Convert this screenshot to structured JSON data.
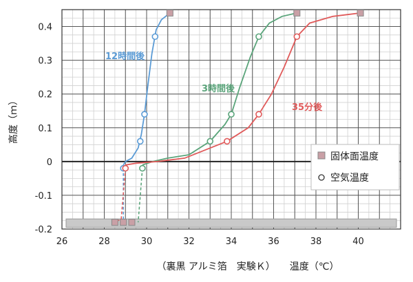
{
  "chart_data": {
    "type": "scatter",
    "xlabel": "（裏黒 アルミ箔　実験Ｋ）　　温度（℃）",
    "ylabel": "高度（ｍ）",
    "xlim": [
      26,
      42
    ],
    "ylim": [
      -0.2,
      0.45
    ],
    "xticks": [
      "26",
      "28",
      "30",
      "32",
      "34",
      "36",
      "38",
      "40"
    ],
    "yticks": [
      "-0.2",
      "-0.1",
      "0",
      "0.1",
      "0.2",
      "0.3",
      "0.4"
    ],
    "grid": true,
    "legend_position": "right",
    "legend": {
      "solid": "固体面温度",
      "air": "空気温度"
    },
    "annotations": [
      {
        "text": "12時間後",
        "color": "#5b9bd5"
      },
      {
        "text": "3時間後",
        "color": "#5aa47a"
      },
      {
        "text": "35分後",
        "color": "#e05a5a"
      }
    ],
    "series": [
      {
        "color": "#5b9bd5",
        "solid_points": [
          [
            31.1,
            0.44
          ],
          [
            28.9,
            -0.18
          ]
        ],
        "air_points": [
          [
            30.4,
            0.37
          ],
          [
            29.9,
            0.14
          ],
          [
            29.7,
            0.06
          ],
          [
            28.9,
            -0.02
          ]
        ],
        "curve": [
          [
            28.9,
            -0.01
          ],
          [
            29.0,
            0.0
          ],
          [
            29.3,
            0.01
          ],
          [
            29.6,
            0.04
          ],
          [
            29.75,
            0.08
          ],
          [
            29.9,
            0.14
          ],
          [
            30.05,
            0.22
          ],
          [
            30.25,
            0.32
          ],
          [
            30.45,
            0.39
          ],
          [
            30.7,
            0.42
          ],
          [
            31.1,
            0.44
          ]
        ],
        "bottom_dashed": [
          [
            28.9,
            -0.02
          ],
          [
            28.9,
            -0.18
          ]
        ]
      },
      {
        "color": "#5aa47a",
        "solid_points": [
          [
            37.1,
            0.44
          ],
          [
            29.3,
            -0.18
          ]
        ],
        "air_points": [
          [
            35.3,
            0.37
          ],
          [
            34.0,
            0.14
          ],
          [
            33.0,
            0.06
          ],
          [
            29.8,
            -0.02
          ]
        ],
        "curve": [
          [
            29.8,
            -0.01
          ],
          [
            30.3,
            0.0
          ],
          [
            31.0,
            0.01
          ],
          [
            32.0,
            0.02
          ],
          [
            33.0,
            0.06
          ],
          [
            33.7,
            0.11
          ],
          [
            34.0,
            0.14
          ],
          [
            34.4,
            0.22
          ],
          [
            34.9,
            0.31
          ],
          [
            35.3,
            0.37
          ],
          [
            35.8,
            0.41
          ],
          [
            36.4,
            0.43
          ],
          [
            37.1,
            0.44
          ]
        ],
        "bottom_dashed": [
          [
            29.8,
            -0.02
          ],
          [
            29.6,
            -0.18
          ]
        ]
      },
      {
        "color": "#e05a5a",
        "solid_points": [
          [
            40.1,
            0.44
          ],
          [
            28.5,
            -0.18
          ]
        ],
        "air_points": [
          [
            37.1,
            0.37
          ],
          [
            35.3,
            0.14
          ],
          [
            33.8,
            0.06
          ],
          [
            29.0,
            -0.02
          ]
        ],
        "curve": [
          [
            29.0,
            -0.01
          ],
          [
            29.5,
            -0.005
          ],
          [
            30.5,
            0.0
          ],
          [
            31.8,
            0.01
          ],
          [
            33.0,
            0.04
          ],
          [
            33.8,
            0.06
          ],
          [
            34.8,
            0.1
          ],
          [
            35.3,
            0.14
          ],
          [
            35.9,
            0.2
          ],
          [
            36.5,
            0.28
          ],
          [
            37.1,
            0.37
          ],
          [
            37.7,
            0.41
          ],
          [
            38.8,
            0.43
          ],
          [
            40.1,
            0.44
          ]
        ],
        "bottom_dashed": [
          [
            29.0,
            -0.02
          ],
          [
            28.8,
            -0.17
          ],
          [
            28.5,
            -0.18
          ]
        ]
      }
    ],
    "ground_band": {
      "y_top": -0.17,
      "y_bottom": -0.195
    }
  }
}
